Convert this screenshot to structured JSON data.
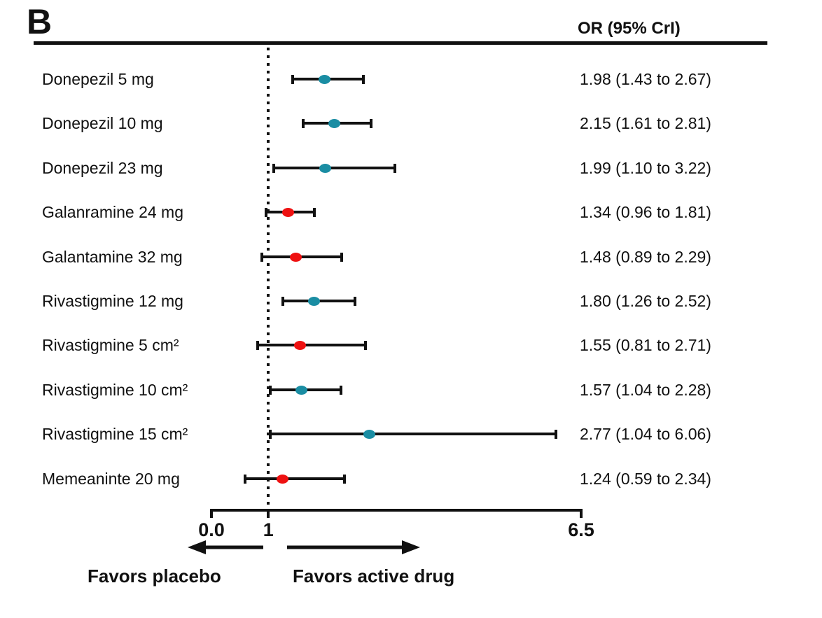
{
  "chart_data": {
    "type": "forest",
    "panel_label": "B",
    "column_header": "OR (95% CrI)",
    "xlabel": "",
    "xlim": [
      0,
      6.5
    ],
    "x_ticks": [
      {
        "value": 0,
        "label": "0.0"
      },
      {
        "value": 1,
        "label": "1"
      },
      {
        "value": 6.5,
        "label": "6.5"
      }
    ],
    "reference_line_x": 1,
    "rows": [
      {
        "label": "Donepezil 5 mg",
        "or": 1.98,
        "ci_low": 1.43,
        "ci_high": 2.67,
        "or_text": "1.98 (1.43 to 2.67)",
        "point_color": "teal"
      },
      {
        "label": "Donepezil 10 mg",
        "or": 2.15,
        "ci_low": 1.61,
        "ci_high": 2.81,
        "or_text": "2.15 (1.61 to 2.81)",
        "point_color": "teal"
      },
      {
        "label": "Donepezil 23 mg",
        "or": 1.99,
        "ci_low": 1.1,
        "ci_high": 3.22,
        "or_text": "1.99 (1.10 to 3.22)",
        "point_color": "teal"
      },
      {
        "label": "Galanramine 24 mg",
        "or": 1.34,
        "ci_low": 0.96,
        "ci_high": 1.81,
        "or_text": "1.34 (0.96 to 1.81)",
        "point_color": "red"
      },
      {
        "label": "Galantamine 32 mg",
        "or": 1.48,
        "ci_low": 0.89,
        "ci_high": 2.29,
        "or_text": "1.48 (0.89 to 2.29)",
        "point_color": "red"
      },
      {
        "label": "Rivastigmine 12 mg",
        "or": 1.8,
        "ci_low": 1.26,
        "ci_high": 2.52,
        "or_text": "1.80 (1.26 to 2.52)",
        "point_color": "teal"
      },
      {
        "label": "Rivastigmine 5 cm²",
        "or": 1.55,
        "ci_low": 0.81,
        "ci_high": 2.71,
        "or_text": "1.55 (0.81 to 2.71)",
        "point_color": "red"
      },
      {
        "label": "Rivastigmine 10 cm²",
        "or": 1.57,
        "ci_low": 1.04,
        "ci_high": 2.28,
        "or_text": "1.57 (1.04 to 2.28)",
        "point_color": "teal"
      },
      {
        "label": "Rivastigmine 15 cm²",
        "or": 2.77,
        "ci_low": 1.04,
        "ci_high": 6.06,
        "or_text": "2.77 (1.04 to 6.06)",
        "point_color": "teal"
      },
      {
        "label": "Memeaninte 20 mg",
        "or": 1.24,
        "ci_low": 0.59,
        "ci_high": 2.34,
        "or_text": "1.24 (0.59 to 2.34)",
        "point_color": "red"
      }
    ],
    "point_colors": {
      "teal": "#1a8da3",
      "red": "#ee1111"
    },
    "line_color": "#111111",
    "footer": {
      "left_label": "Favors placebo",
      "right_label": "Favors active drug"
    },
    "legend_position": "none",
    "grid": false
  }
}
